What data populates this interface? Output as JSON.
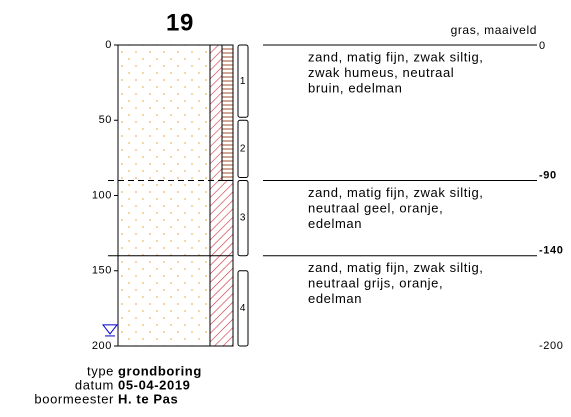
{
  "title": "19",
  "depth_ticks": [
    0,
    50,
    100,
    150,
    200
  ],
  "depth_max": 200,
  "surface": "gras, maaiveld",
  "layers": [
    {
      "top": {
        "value": 0,
        "label": "0"
      },
      "bottom": 90,
      "description": [
        "zand, matig fijn, zwak siltig,",
        "zwak humeus, neutraal",
        "bruin, edelman"
      ]
    },
    {
      "top": {
        "value": 90,
        "label": "-90"
      },
      "bottom": 140,
      "description": [
        "zand, matig fijn, zwak siltig,",
        "neutraal geel, oranje,",
        "edelman"
      ]
    },
    {
      "top": {
        "value": 140,
        "label": "-140"
      },
      "bottom": 200,
      "description": [
        "zand, matig fijn, zwak siltig,",
        "neutraal grijs, oranje,",
        "edelman"
      ]
    }
  ],
  "end_depth": {
    "value": 200,
    "label": "-200"
  },
  "samples": [
    {
      "label": "1",
      "top": 0,
      "bottom": 48
    },
    {
      "label": "2",
      "top": 50,
      "bottom": 88
    },
    {
      "label": "3",
      "top": 90,
      "bottom": 140
    },
    {
      "label": "4",
      "top": 150,
      "bottom": 200
    }
  ],
  "water_level": 186,
  "info": [
    {
      "key": "type",
      "value": "grondboring"
    },
    {
      "key": "datum",
      "value": "05-04-2019"
    },
    {
      "key": "boormeester",
      "value": "H. te Pas"
    }
  ]
}
